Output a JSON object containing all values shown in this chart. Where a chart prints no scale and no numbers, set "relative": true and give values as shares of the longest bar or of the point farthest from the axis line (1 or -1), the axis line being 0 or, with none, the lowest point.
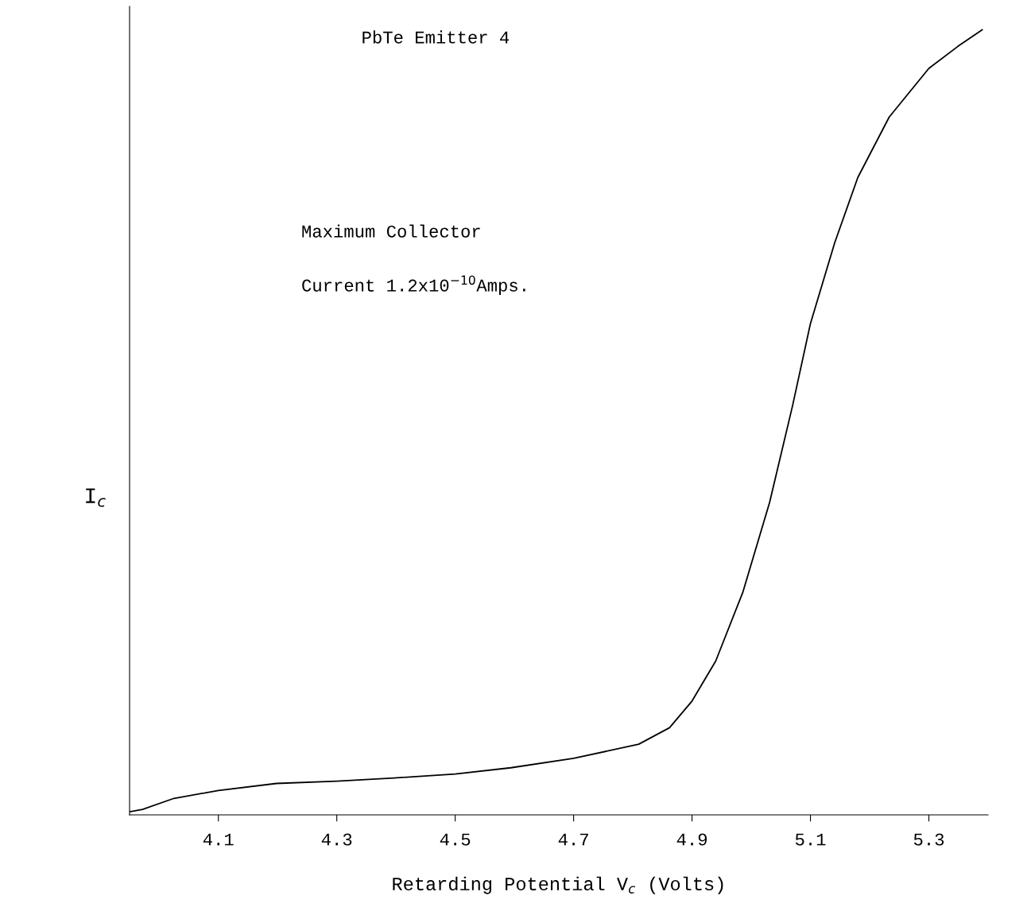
{
  "chart_data": {
    "type": "line",
    "title": "PbTe Emitter 4",
    "xlabel": "Retarding Potential V$_{c}$ (Volts)",
    "ylabel": "I$_{c}$",
    "annotations": [
      "Maximum Collector",
      "Current 1.2x10$^{−10}$Amps."
    ],
    "relative": true,
    "xlim": [
      3.95,
      5.4
    ],
    "xticks": [
      4.1,
      4.3,
      4.5,
      4.7,
      4.9,
      5.1,
      5.3
    ],
    "x": [
      3.95,
      3.972,
      4.025,
      4.1,
      4.198,
      4.3,
      4.397,
      4.5,
      4.594,
      4.7,
      4.81,
      4.862,
      4.9,
      4.94,
      4.986,
      5.031,
      5.07,
      5.1,
      5.141,
      5.18,
      5.233,
      5.3,
      5.349,
      5.39
    ],
    "series": [
      {
        "color": "#000000",
        "values": [
          0.004,
          0.007,
          0.021,
          0.031,
          0.04,
          0.043,
          0.047,
          0.052,
          0.06,
          0.072,
          0.09,
          0.111,
          0.145,
          0.196,
          0.284,
          0.398,
          0.522,
          0.626,
          0.729,
          0.812,
          0.889,
          0.951,
          0.979,
          1.0
        ]
      }
    ],
    "grid": false,
    "legend": false,
    "marker": "none",
    "line_style": "solid"
  }
}
